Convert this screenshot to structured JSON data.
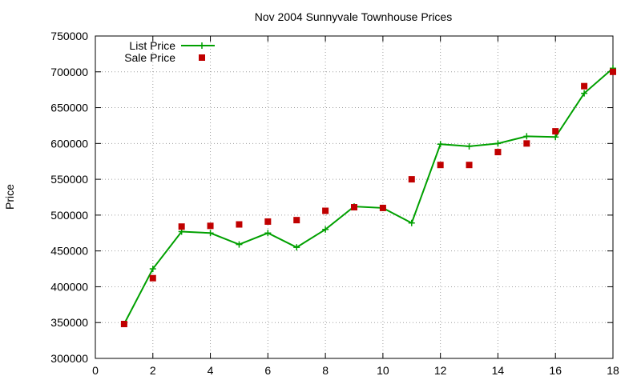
{
  "chart_data": {
    "type": "line",
    "title": "Nov 2004 Sunnyvale Townhouse Prices",
    "xlabel": "",
    "ylabel": "Price",
    "xlim": [
      0,
      18
    ],
    "ylim": [
      300000,
      750000
    ],
    "xticks": [
      0,
      2,
      4,
      6,
      8,
      10,
      12,
      14,
      16,
      18
    ],
    "yticks": [
      300000,
      350000,
      400000,
      450000,
      500000,
      550000,
      600000,
      650000,
      700000,
      750000
    ],
    "grid": true,
    "legend_position": "top-left",
    "series": [
      {
        "name": "List Price",
        "style": "line-with-plus-markers",
        "color": "#00a000",
        "points": [
          [
            1,
            348000
          ],
          [
            2,
            425000
          ],
          [
            3,
            477000
          ],
          [
            4,
            475000
          ],
          [
            5,
            459000
          ],
          [
            6,
            475000
          ],
          [
            7,
            455000
          ],
          [
            8,
            480000
          ],
          [
            9,
            512000
          ],
          [
            10,
            510000
          ],
          [
            11,
            489000
          ],
          [
            12,
            599000
          ],
          [
            13,
            596000
          ],
          [
            14,
            600000
          ],
          [
            15,
            610000
          ],
          [
            16,
            609000
          ],
          [
            17,
            670000
          ],
          [
            18,
            705000
          ]
        ]
      },
      {
        "name": "Sale Price",
        "style": "square-points",
        "color": "#c00000",
        "points": [
          [
            1,
            348000
          ],
          [
            2,
            412000
          ],
          [
            3,
            484000
          ],
          [
            4,
            485000
          ],
          [
            5,
            487000
          ],
          [
            6,
            491000
          ],
          [
            7,
            493000
          ],
          [
            8,
            506000
          ],
          [
            9,
            511000
          ],
          [
            10,
            510000
          ],
          [
            11,
            550000
          ],
          [
            12,
            570000
          ],
          [
            13,
            570000
          ],
          [
            14,
            588000
          ],
          [
            15,
            600000
          ],
          [
            16,
            617000
          ],
          [
            17,
            680000
          ],
          [
            18,
            700000
          ]
        ]
      }
    ]
  }
}
